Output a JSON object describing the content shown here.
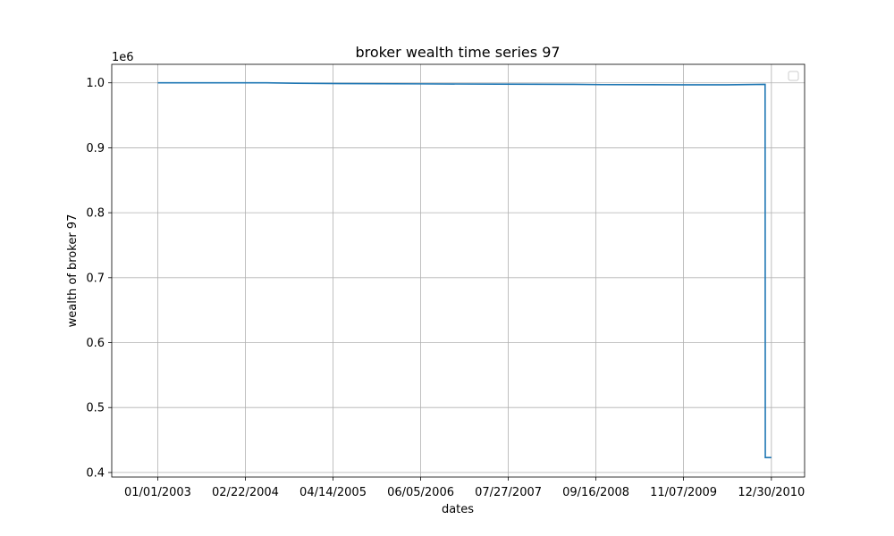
{
  "chart_data": {
    "type": "line",
    "title": "broker wealth time series 97",
    "xlabel": "dates",
    "ylabel": "wealth of broker 97",
    "y_offset_text": "1e6",
    "x_ticks": [
      "01/01/2003",
      "02/22/2004",
      "04/14/2005",
      "06/05/2006",
      "07/27/2007",
      "09/16/2008",
      "11/07/2009",
      "12/30/2010"
    ],
    "y_ticks": [
      "0.4",
      "0.5",
      "0.6",
      "0.7",
      "0.8",
      "0.9",
      "1.0"
    ],
    "ylim": [
      0.393,
      1.0285
    ],
    "xlim": [
      "2002-05-27",
      "2011-06-06"
    ],
    "grid": true,
    "legend": "top-right (empty)",
    "line_color": "#1f77b4",
    "series": [
      {
        "x": [
          "2003-01-01",
          "2004-06-01",
          "2004-10-15",
          "2005-06-01",
          "2006-06-01",
          "2007-06-01",
          "2008-06-01",
          "2008-10-15",
          "2009-06-01",
          "2010-01-01",
          "2010-06-01",
          "2010-11-30",
          "2010-12-01",
          "2010-12-30"
        ],
        "y": [
          1.0,
          1.0,
          0.9993,
          0.9988,
          0.9984,
          0.998,
          0.9976,
          0.9972,
          0.9971,
          0.9969,
          0.997,
          0.9977,
          0.423,
          0.423
        ]
      }
    ]
  }
}
